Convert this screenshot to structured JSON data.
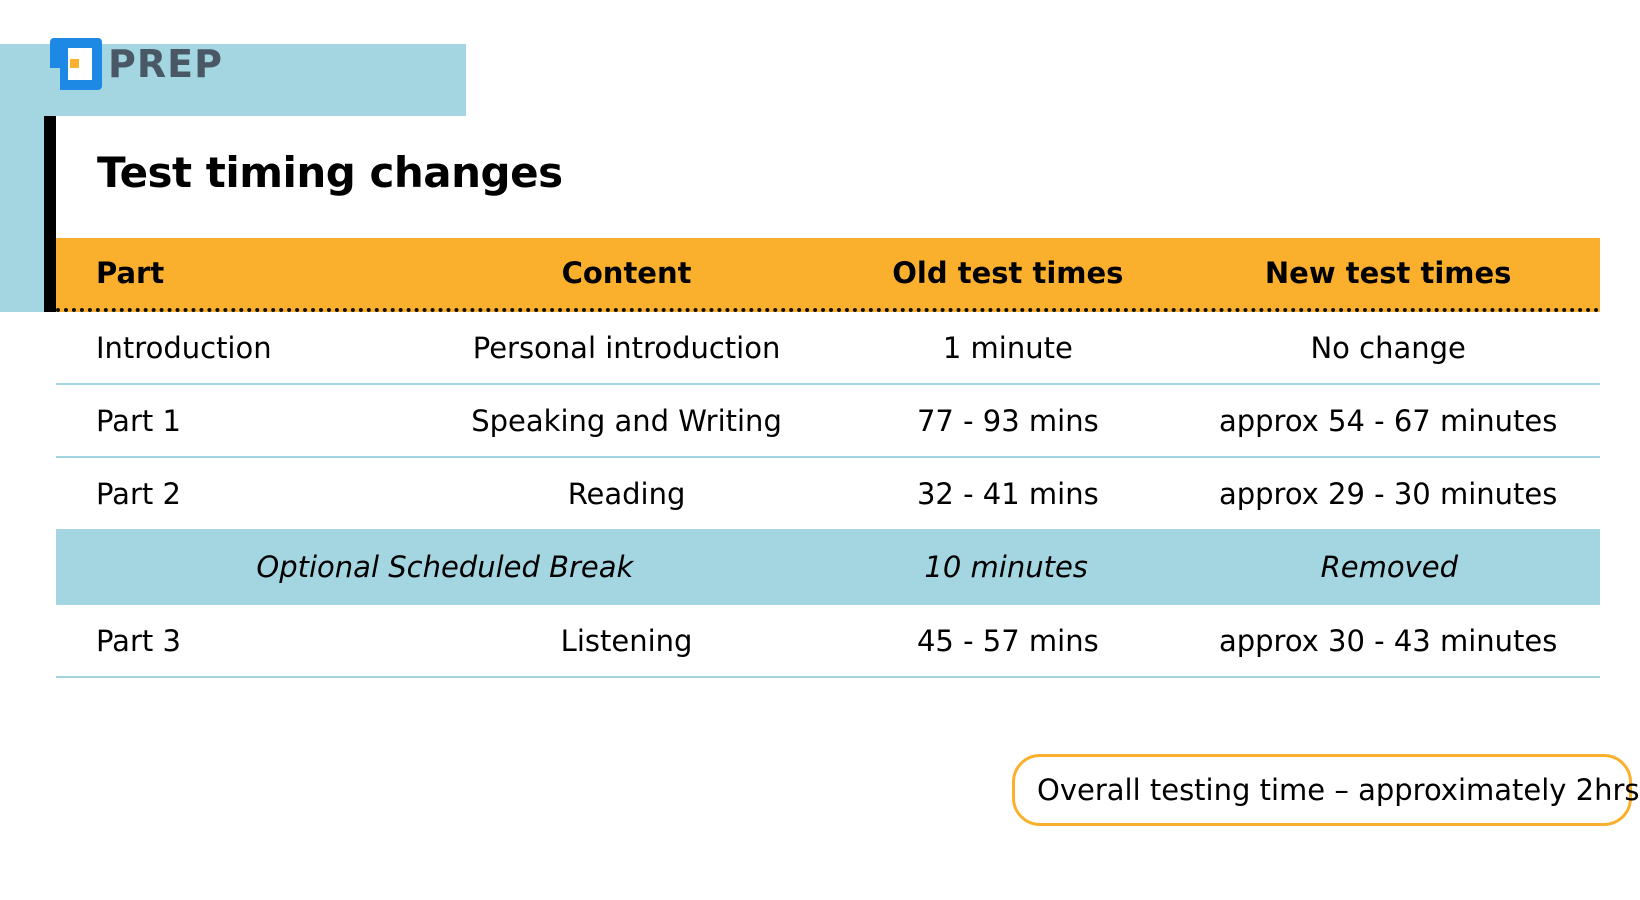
{
  "brand": {
    "logo_text": "PREP",
    "colors": {
      "blue": "#1e88e5",
      "orange": "#fbb02d",
      "light_blue": "#a3d6e0",
      "text_gray": "#4a5866"
    },
    "logo_icon": "prep-logo-icon"
  },
  "page": {
    "title": "Test timing changes"
  },
  "table": {
    "headers": [
      "Part",
      "Content",
      "Old test times",
      "New test times"
    ],
    "rows": [
      {
        "part": "Introduction",
        "content": "Personal introduction",
        "old": "1 minute",
        "new": "No change"
      },
      {
        "part": "Part 1",
        "content": "Speaking and Writing",
        "old": "77 - 93 mins",
        "new": "approx 54 - 67 minutes"
      },
      {
        "part": "Part 2",
        "content": "Reading",
        "old": "32 - 41 mins",
        "new": "approx 29 - 30 minutes"
      }
    ],
    "break_row": {
      "label": "Optional Scheduled Break",
      "old": "10 minutes",
      "new": "Removed"
    },
    "last_row": {
      "part": "Part 3",
      "content": "Listening",
      "old": "45 - 57 mins",
      "new": "approx 30 - 43 minutes"
    }
  },
  "footer": {
    "overall": "Overall testing time – approximately 2hrs"
  }
}
